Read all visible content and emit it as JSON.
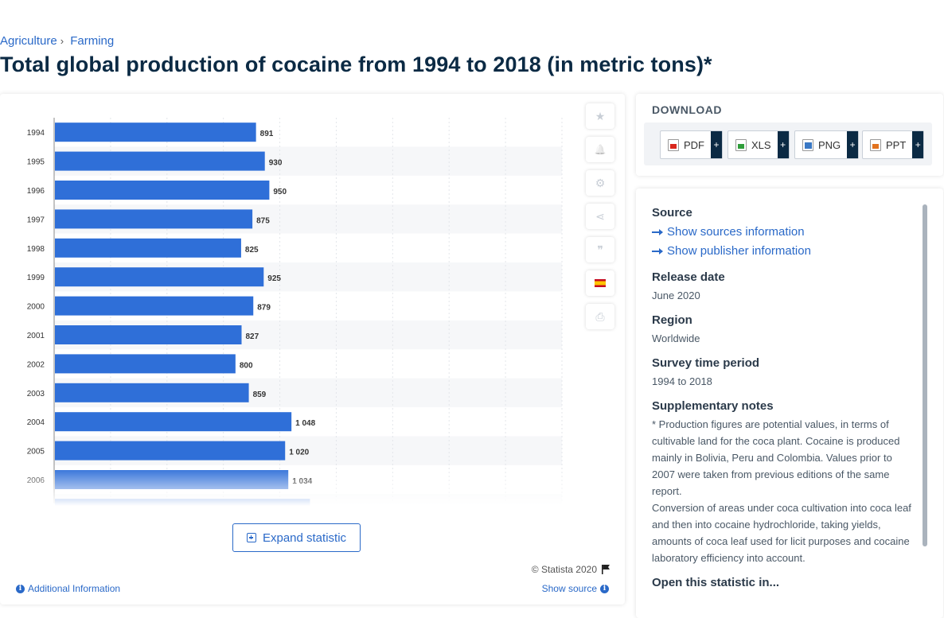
{
  "breadcrumb": {
    "items": [
      "Agriculture",
      "Farming"
    ],
    "separator": "›"
  },
  "title": "Total global production of cocaine from 1994 to 2018 (in metric tons)*",
  "chart_data": {
    "type": "bar",
    "orientation": "horizontal",
    "categories": [
      "1994",
      "1995",
      "1996",
      "1997",
      "1998",
      "1999",
      "2000",
      "2001",
      "2002",
      "2003",
      "2004",
      "2005",
      "2006"
    ],
    "values": [
      891,
      930,
      950,
      875,
      825,
      925,
      879,
      827,
      800,
      859,
      1048,
      1020,
      1034
    ],
    "value_labels": [
      "891",
      "930",
      "950",
      "875",
      "825",
      "925",
      "879",
      "827",
      "800",
      "859",
      "1 048",
      "1 020",
      "1 034"
    ],
    "xlim": [
      0,
      2250
    ],
    "color": "#2f6fd8",
    "grid": true
  },
  "tools": {
    "icons": [
      "star-icon",
      "bell-icon",
      "gear-icon",
      "share-icon",
      "quote-icon",
      "flag-es-icon",
      "print-icon"
    ],
    "glyphs": [
      "★",
      "🔔",
      "⚙",
      "⋖",
      "❞",
      "",
      "⎙"
    ]
  },
  "expand": {
    "label": "Expand statistic"
  },
  "footer": {
    "copyright": "© Statista 2020",
    "additional_info": "Additional Information",
    "show_source": "Show source"
  },
  "download": {
    "title": "DOWNLOAD",
    "buttons": [
      {
        "label": "PDF",
        "plus": "+"
      },
      {
        "label": "XLS",
        "plus": "+"
      },
      {
        "label": "PNG",
        "plus": "+"
      },
      {
        "label": "PPT",
        "plus": "+"
      }
    ]
  },
  "meta": {
    "source_heading": "Source",
    "show_sources": "Show sources information",
    "show_publisher": "Show publisher information",
    "release_heading": "Release date",
    "release_value": "June 2020",
    "region_heading": "Region",
    "region_value": "Worldwide",
    "survey_heading": "Survey time period",
    "survey_value": "1994 to 2018",
    "notes_heading": "Supplementary notes",
    "notes_p1": "* Production figures are potential values, in terms of cultivable land for the coca plant. Cocaine is produced mainly in Bolivia, Peru and Colombia. Values prior to 2007 were taken from previous editions of the same report.",
    "notes_p2": "Conversion of areas under coca cultivation into coca leaf and then into cocaine hydrochloride, taking yields, amounts of coca leaf used for licit purposes and cocaine laboratory efficiency into account.",
    "open_heading": "Open this statistic in..."
  }
}
